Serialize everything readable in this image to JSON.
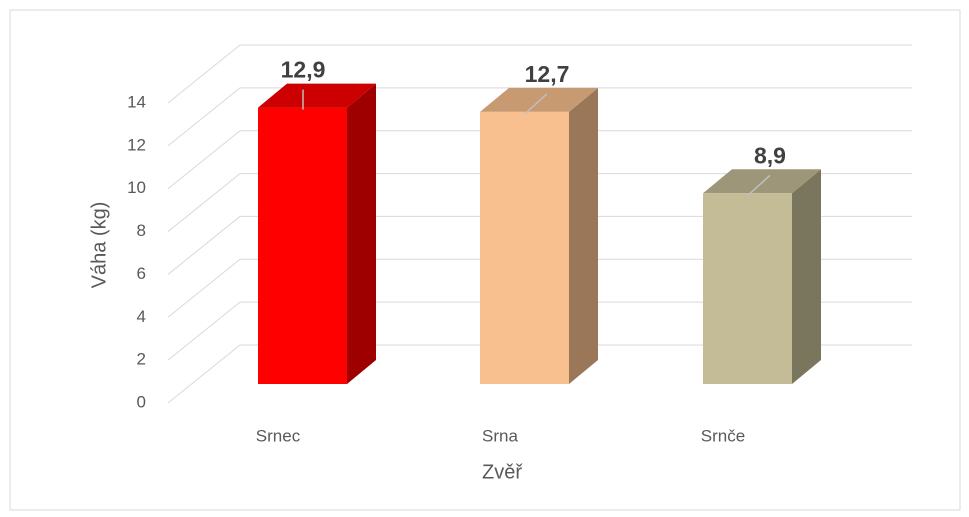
{
  "chart_data": {
    "type": "bar3d",
    "categories": [
      "Srnec",
      "Srna",
      "Srnče"
    ],
    "series": [
      {
        "name": "Váha",
        "values": [
          12.9,
          12.7,
          8.9
        ],
        "value_labels": [
          "12,9",
          "12,7",
          "8,9"
        ]
      }
    ],
    "colors": [
      "#ff0000",
      "#f9c08f",
      "#c4bc96"
    ],
    "ylim": [
      0,
      14
    ],
    "yticks": [
      0,
      2,
      4,
      6,
      8,
      10,
      12,
      14
    ],
    "grid": true,
    "y_label": "Váha (kg)",
    "x_label": "Zvěř"
  }
}
